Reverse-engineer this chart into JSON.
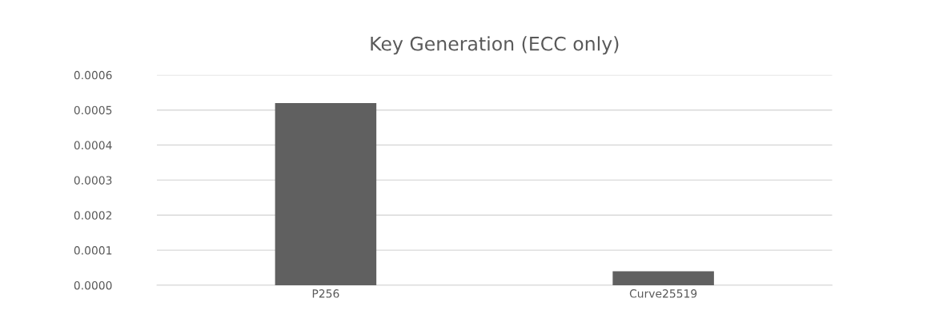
{
  "chart_data": {
    "type": "bar",
    "title": "Key Generation (ECC only)",
    "categories": [
      "P256",
      "Curve25519"
    ],
    "values": [
      0.00052,
      4e-05
    ],
    "color": "#606060",
    "ylim": [
      0,
      0.0006
    ],
    "yticks": [
      {
        "value": 0,
        "label": "0.0000"
      },
      {
        "value": 0.0001,
        "label": "0.0001"
      },
      {
        "value": 0.0002,
        "label": "0.0002"
      },
      {
        "value": 0.0003,
        "label": "0.0003"
      },
      {
        "value": 0.0004,
        "label": "0.0004"
      },
      {
        "value": 0.0005,
        "label": "0.0005"
      },
      {
        "value": 0.0006,
        "label": "0.0006"
      }
    ],
    "grid": "y"
  }
}
